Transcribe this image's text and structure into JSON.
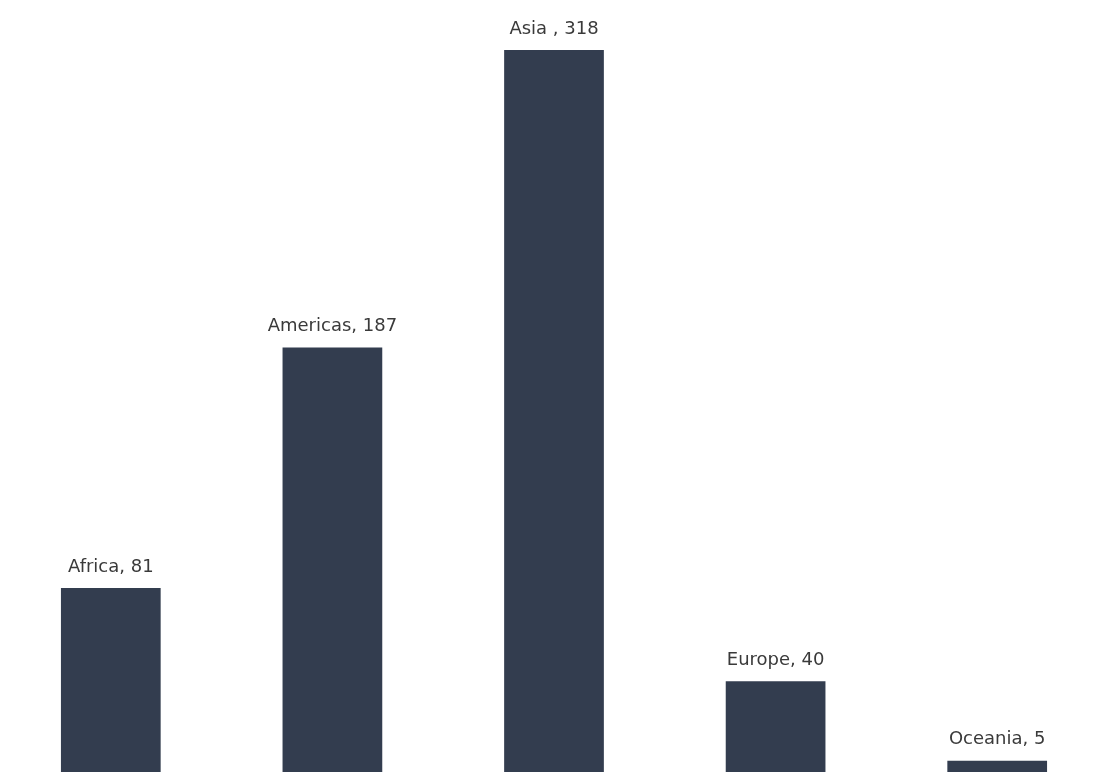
{
  "chart_data": {
    "type": "bar",
    "categories": [
      null,
      null,
      null,
      null,
      null
    ],
    "values": [
      81,
      187,
      318,
      40,
      5
    ],
    "value_labels": [
      "Africa, 81",
      "Americas, 187",
      "Asia , 318",
      "Europe, 40",
      "Oceania, 5"
    ],
    "color": "#333d4f"
  }
}
